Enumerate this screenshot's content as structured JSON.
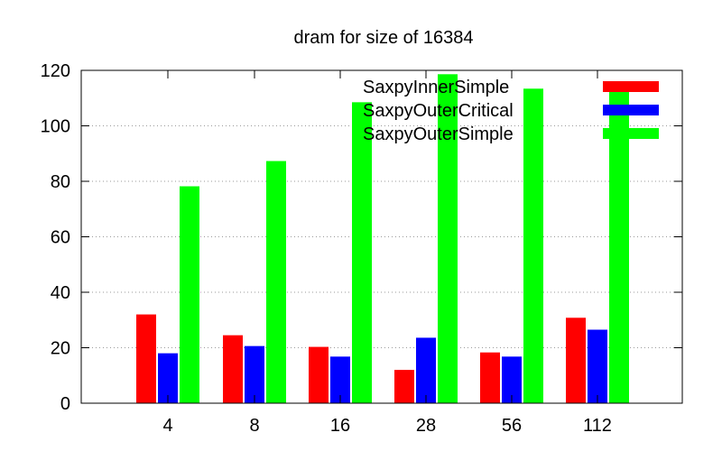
{
  "chart_data": {
    "type": "bar",
    "title": "dram for size of 16384",
    "xlabel": "",
    "ylabel": "",
    "ylim": [
      0,
      120
    ],
    "yticks": [
      0,
      20,
      40,
      60,
      80,
      100,
      120
    ],
    "grid": true,
    "legend_position": "top-right",
    "categories": [
      "4",
      "8",
      "16",
      "28",
      "56",
      "112"
    ],
    "series": [
      {
        "name": "SaxpyInnerSimple",
        "color": "#ff0000",
        "values": [
          32,
          24.5,
          20.3,
          12,
          18.3,
          30.8
        ]
      },
      {
        "name": "SaxpyOuterCritical",
        "color": "#0000ff",
        "values": [
          18,
          20.6,
          16.8,
          23.6,
          16.8,
          26.5
        ]
      },
      {
        "name": "SaxpyOuterSimple",
        "color": "#00ff00",
        "values": [
          78.2,
          87.3,
          108.5,
          118.6,
          113.4,
          113.8
        ]
      }
    ]
  }
}
